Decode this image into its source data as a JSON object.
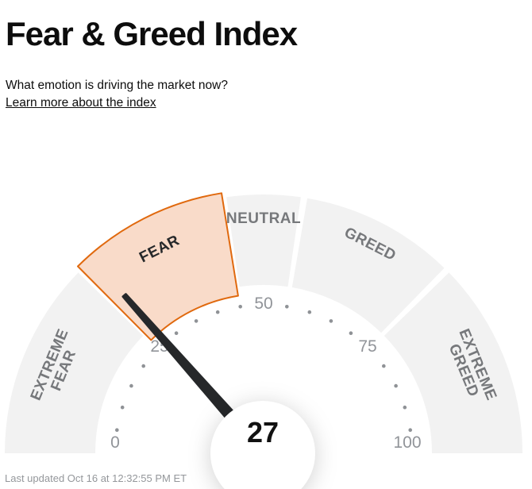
{
  "page": {
    "title": "Fear & Greed Index",
    "subtitle": "What emotion is driving the market now?",
    "learn_more_link": "Learn more about the index",
    "last_updated": "Last updated Oct 16 at 12:32:55 PM ET"
  },
  "chart_data": {
    "type": "gauge",
    "title": "Fear & Greed Index",
    "value": 27,
    "value_label": "27",
    "min": 0,
    "max": 100,
    "current_zone": "FEAR",
    "segments": [
      {
        "label": "EXTREME FEAR",
        "lines": [
          "EXTREME",
          "FEAR"
        ],
        "start": 0,
        "end": 25,
        "selected": false
      },
      {
        "label": "FEAR",
        "lines": [
          "FEAR"
        ],
        "start": 25,
        "end": 45,
        "selected": true
      },
      {
        "label": "NEUTRAL",
        "lines": [
          "NEUTRAL"
        ],
        "start": 45,
        "end": 55,
        "selected": false
      },
      {
        "label": "GREED",
        "lines": [
          "GREED"
        ],
        "start": 55,
        "end": 75,
        "selected": false
      },
      {
        "label": "EXTREME GREED",
        "lines": [
          "EXTREME",
          "GREED"
        ],
        "start": 75,
        "end": 100,
        "selected": false
      }
    ],
    "axis_tick_labels": [
      0,
      25,
      50,
      75,
      100
    ],
    "minor_tick_step": 5,
    "colors": {
      "segment_default": "#f2f2f2",
      "segment_selected_fill": "#f9dbc9",
      "segment_selected_stroke": "#e0690e",
      "segment_label": "#76787b",
      "segment_label_selected": "#26282a",
      "needle": "#26282a",
      "center_disc": "#ffffff",
      "tick_dot": "#8f9296",
      "tick_label": "#919499",
      "value_text": "#111111"
    }
  }
}
